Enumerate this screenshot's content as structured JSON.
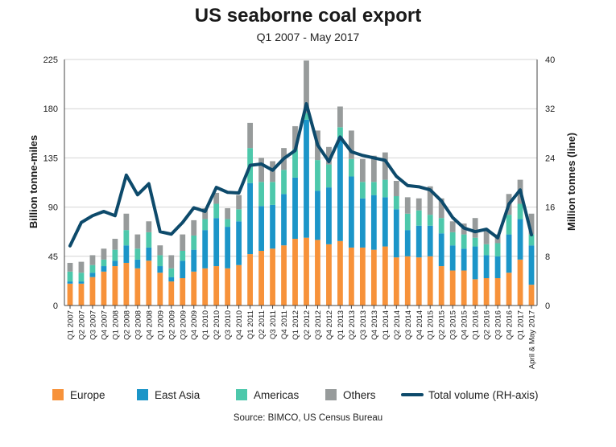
{
  "chart_data": {
    "type": "bar",
    "title": "US seaborne coal export",
    "subtitle": "Q1 2007 - May 2017",
    "source": "Source: BIMCO, US Census Bureau",
    "ylabel": "Billion tonne-miles",
    "y2label": "Million tonnes (line)",
    "ylim": [
      0,
      225
    ],
    "y2lim": [
      0,
      40
    ],
    "yticks": [
      "0",
      "45",
      "90",
      "135",
      "180",
      "225"
    ],
    "y2ticks": [
      "0",
      "8",
      "16",
      "24",
      "32",
      "40"
    ],
    "stacked": true,
    "legend_position": "bottom",
    "categories": [
      "Q1 2007",
      "Q2 2007",
      "Q3 2007",
      "Q4 2007",
      "Q1 2008",
      "Q2 2008",
      "Q3 2008",
      "Q4 2008",
      "Q1 2009",
      "Q2 2009",
      "Q3 2009",
      "Q4 2009",
      "Q1 2010",
      "Q2 2010",
      "Q3 2010",
      "Q4 2010",
      "Q1 2011",
      "Q2 2011",
      "Q3 2011",
      "Q4 2011",
      "Q1 2012",
      "Q2 2012",
      "Q3 2012",
      "Q4 2012",
      "Q1 2013",
      "Q2 2013",
      "Q3 2013",
      "Q4 2013",
      "Q1 2014",
      "Q2 2014",
      "Q3 2014",
      "Q4 2014",
      "Q1 2015",
      "Q2 2015",
      "Q3 2015",
      "Q4 2015",
      "Q1 2016",
      "Q2 2016",
      "Q3 2016",
      "Q4 2016",
      "Q1 2017",
      "April & May 2017"
    ],
    "series": [
      {
        "name": "Europe",
        "color": "#f7923a",
        "values": [
          20,
          20,
          26,
          31,
          36,
          39,
          34,
          41,
          30,
          22,
          25,
          31,
          34,
          36,
          34,
          37,
          47,
          50,
          52,
          55,
          61,
          62,
          60,
          56,
          59,
          53,
          53,
          51,
          54,
          44,
          45,
          44,
          45,
          36,
          32,
          32,
          24,
          25,
          25,
          30,
          42,
          19
        ]
      },
      {
        "name": "East Asia",
        "color": "#1b95c8",
        "values": [
          2,
          2,
          4,
          5,
          5,
          16,
          8,
          12,
          6,
          4,
          16,
          20,
          35,
          44,
          38,
          40,
          65,
          41,
          40,
          47,
          56,
          108,
          45,
          52,
          95,
          65,
          45,
          50,
          45,
          44,
          24,
          29,
          28,
          30,
          23,
          20,
          30,
          21,
          20,
          35,
          37,
          36
        ]
      },
      {
        "name": "Americas",
        "color": "#4dc8ab",
        "values": [
          9,
          8,
          7,
          6,
          10,
          14,
          10,
          14,
          10,
          8,
          9,
          13,
          10,
          13,
          7,
          11,
          32,
          22,
          21,
          22,
          26,
          6,
          28,
          21,
          9,
          16,
          15,
          12,
          16,
          12,
          15,
          14,
          10,
          14,
          12,
          13,
          8,
          10,
          12,
          18,
          14,
          10
        ]
      },
      {
        "name": "Others",
        "color": "#979b9b",
        "values": [
          8,
          10,
          9,
          10,
          10,
          15,
          13,
          10,
          9,
          12,
          15,
          14,
          10,
          10,
          10,
          13,
          23,
          22,
          19,
          20,
          21,
          48,
          27,
          16,
          19,
          26,
          21,
          24,
          25,
          14,
          15,
          11,
          26,
          18,
          10,
          10,
          18,
          12,
          8,
          19,
          22,
          19
        ]
      }
    ],
    "line": {
      "name": "Total volume (RH-axis)",
      "color": "#0d4a6b",
      "values": [
        9.7,
        13.5,
        14.6,
        15.3,
        14.6,
        21.2,
        18.0,
        19.8,
        12.0,
        11.6,
        13.5,
        15.9,
        15.3,
        19.2,
        18.4,
        18.3,
        22.8,
        23.0,
        22.0,
        23.9,
        25.2,
        32.8,
        26.1,
        23.4,
        27.4,
        25.0,
        24.4,
        24.0,
        23.6,
        21.0,
        19.5,
        19.3,
        18.8,
        17.0,
        14.3,
        12.6,
        12.0,
        12.4,
        11.0,
        16.5,
        18.8,
        11.5
      ]
    }
  },
  "legend": [
    {
      "label": "Europe",
      "color": "#f7923a",
      "kind": "box"
    },
    {
      "label": "East Asia",
      "color": "#1b95c8",
      "kind": "box"
    },
    {
      "label": "Americas",
      "color": "#4dc8ab",
      "kind": "box"
    },
    {
      "label": "Others",
      "color": "#979b9b",
      "kind": "box"
    },
    {
      "label": "Total volume (RH-axis)",
      "color": "#0d4a6b",
      "kind": "line"
    }
  ]
}
